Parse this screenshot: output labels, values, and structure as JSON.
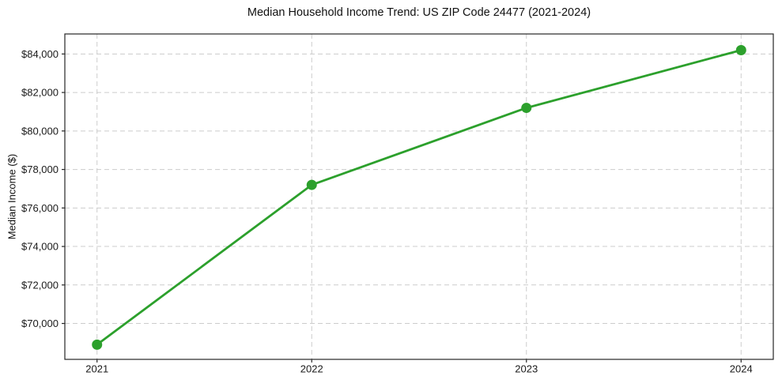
{
  "chart_data": {
    "type": "line",
    "title": "Median Household Income Trend: US ZIP Code 24477 (2021-2024)",
    "ylabel": "Median Income ($)",
    "xlabel": "",
    "x": [
      2021,
      2022,
      2023,
      2024
    ],
    "values": [
      68900,
      77200,
      81200,
      84200
    ],
    "categories": [
      "2021",
      "2022",
      "2023",
      "2024"
    ],
    "xlim": [
      2020.85,
      2024.15
    ],
    "ylim": [
      68135,
      85040
    ],
    "x_ticks": [
      {
        "value": 2021,
        "label": "2021"
      },
      {
        "value": 2022,
        "label": "2022"
      },
      {
        "value": 2023,
        "label": "2023"
      },
      {
        "value": 2024,
        "label": "2024"
      }
    ],
    "y_ticks": [
      {
        "value": 70000,
        "label": "$70,000"
      },
      {
        "value": 72000,
        "label": "$72,000"
      },
      {
        "value": 74000,
        "label": "$74,000"
      },
      {
        "value": 76000,
        "label": "$76,000"
      },
      {
        "value": 78000,
        "label": "$78,000"
      },
      {
        "value": 80000,
        "label": "$80,000"
      },
      {
        "value": 82000,
        "label": "$82,000"
      },
      {
        "value": 84000,
        "label": "$84,000"
      }
    ],
    "grid": {
      "show": true,
      "style": "dashed",
      "color": "#cccccc"
    },
    "legend": {
      "show": false
    },
    "line_color": "#2ca02c",
    "line_width": 2.8,
    "marker": {
      "shape": "circle",
      "color": "#2ca02c",
      "radius": 6.5
    },
    "axis_color": "#262626",
    "text_color": "#1a1a1a",
    "background_color": "#ffffff"
  }
}
